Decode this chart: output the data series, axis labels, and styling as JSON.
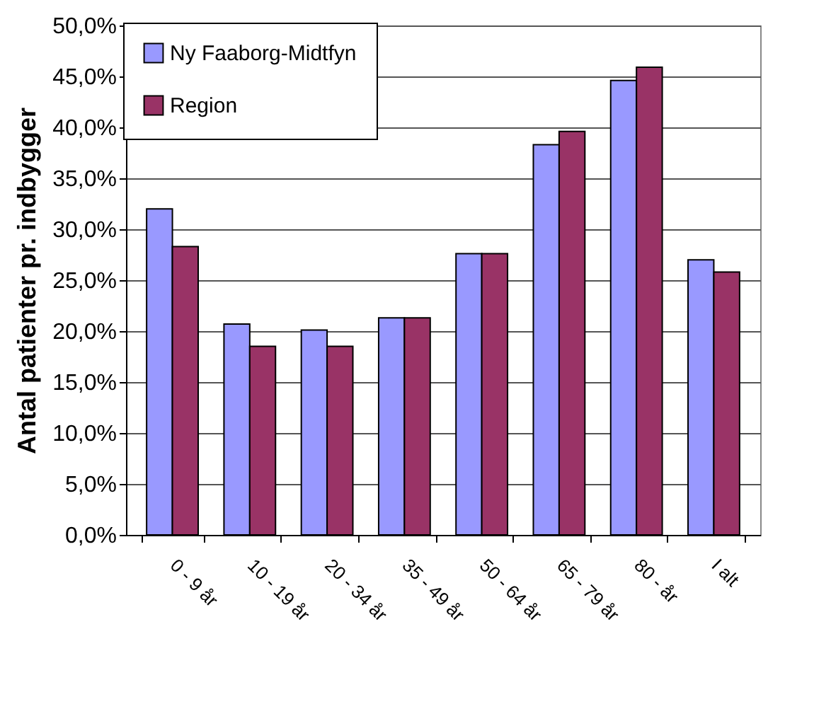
{
  "chart_data": {
    "type": "bar",
    "ylabel": "Antal patienter pr. indbygger",
    "categories": [
      "0 - 9 år",
      "10 - 19 år",
      "20 - 34 år",
      "35 - 49 år",
      "50 - 64 år",
      "65 - 79 år",
      "80 - år",
      "I alt"
    ],
    "series": [
      {
        "name": "Ny Faaborg-Midtfyn",
        "color": "#9999ff",
        "values": [
          32.0,
          20.7,
          20.1,
          21.3,
          27.6,
          38.3,
          44.6,
          27.0
        ]
      },
      {
        "name": "Region",
        "color": "#993366",
        "values": [
          28.3,
          18.5,
          18.5,
          21.3,
          27.6,
          39.6,
          45.9,
          25.8
        ]
      }
    ],
    "ylim": [
      0,
      50
    ],
    "yticks": [
      {
        "value": 0,
        "label": "0,0%"
      },
      {
        "value": 5,
        "label": "5,0%"
      },
      {
        "value": 10,
        "label": "10,0%"
      },
      {
        "value": 15,
        "label": "15,0%"
      },
      {
        "value": 20,
        "label": "20,0%"
      },
      {
        "value": 25,
        "label": "25,0%"
      },
      {
        "value": 30,
        "label": "30,0%"
      },
      {
        "value": 35,
        "label": "35,0%"
      },
      {
        "value": 40,
        "label": "40,0%"
      },
      {
        "value": 45,
        "label": "45,0%"
      },
      {
        "value": 50,
        "label": "50,0%"
      }
    ],
    "grid": "y",
    "legend": "top left"
  }
}
